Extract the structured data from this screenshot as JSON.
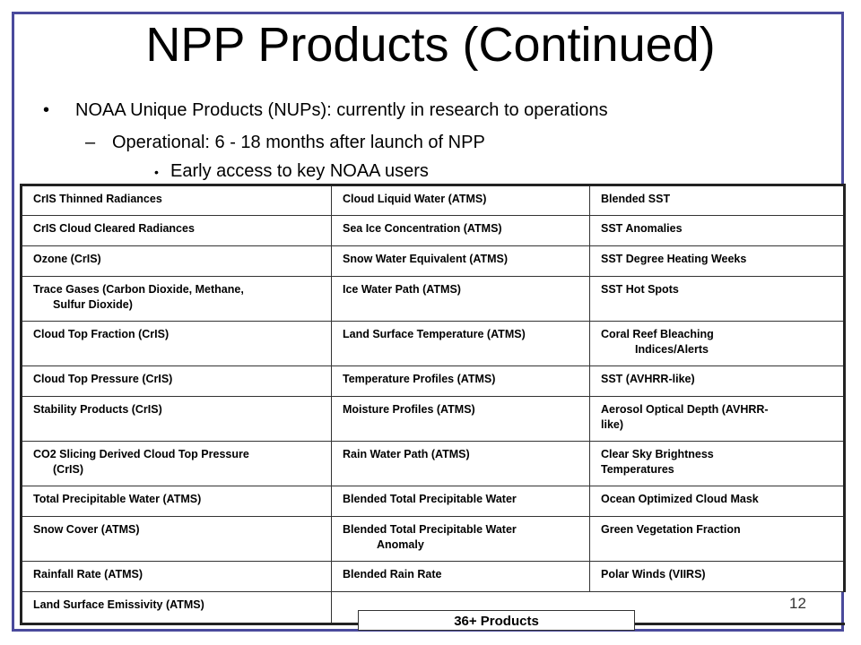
{
  "slide": {
    "title": "NPP Products (Continued)",
    "bullets": [
      {
        "marker": "•",
        "text": "NOAA Unique Products (NUPs):  currently in research to operations"
      },
      {
        "marker": "–",
        "text": "Operational: 6 - 18 months after launch of NPP"
      },
      {
        "marker": "•",
        "text": "Early access to key NOAA users"
      }
    ],
    "badge": "36+ Products",
    "page_number": "12"
  },
  "table": {
    "rows": [
      [
        "CrIS Thinned Radiances",
        "Cloud Liquid Water (ATMS)",
        "Blended SST"
      ],
      [
        "CrIS Cloud Cleared Radiances",
        "Sea Ice Concentration (ATMS)",
        "SST Anomalies"
      ],
      [
        "Ozone (CrIS)",
        "Snow Water Equivalent (ATMS)",
        "SST Degree Heating Weeks"
      ],
      [
        [
          "Trace Gases (Carbon Dioxide, Methane,",
          "Sulfur Dioxide)"
        ],
        "Ice Water Path (ATMS)",
        "SST Hot Spots"
      ],
      [
        "Cloud Top Fraction (CrIS)",
        "Land Surface Temperature (ATMS)",
        [
          "Coral Reef Bleaching",
          "Indices/Alerts"
        ]
      ],
      [
        "Cloud Top Pressure (CrIS)",
        "Temperature Profiles (ATMS)",
        "SST (AVHRR-like)"
      ],
      [
        "Stability Products (CrIS)",
        "Moisture Profiles (ATMS)",
        [
          "Aerosol Optical Depth (AVHRR-",
          "like)"
        ]
      ],
      [
        [
          "CO2 Slicing Derived Cloud Top Pressure",
          "(CrIS)"
        ],
        "Rain Water Path (ATMS)",
        [
          "Clear Sky Brightness",
          "Temperatures"
        ]
      ],
      [
        "Total Precipitable Water (ATMS)",
        "Blended Total Precipitable Water",
        "Ocean Optimized Cloud Mask"
      ],
      [
        "Snow Cover (ATMS)",
        [
          "Blended Total Precipitable Water",
          "Anomaly"
        ],
        "Green Vegetation Fraction"
      ],
      [
        "Rainfall Rate (ATMS)",
        "Blended Rain Rate",
        "Polar Winds (VIIRS)"
      ],
      [
        "Land Surface Emissivity (ATMS)",
        "",
        ""
      ]
    ]
  }
}
